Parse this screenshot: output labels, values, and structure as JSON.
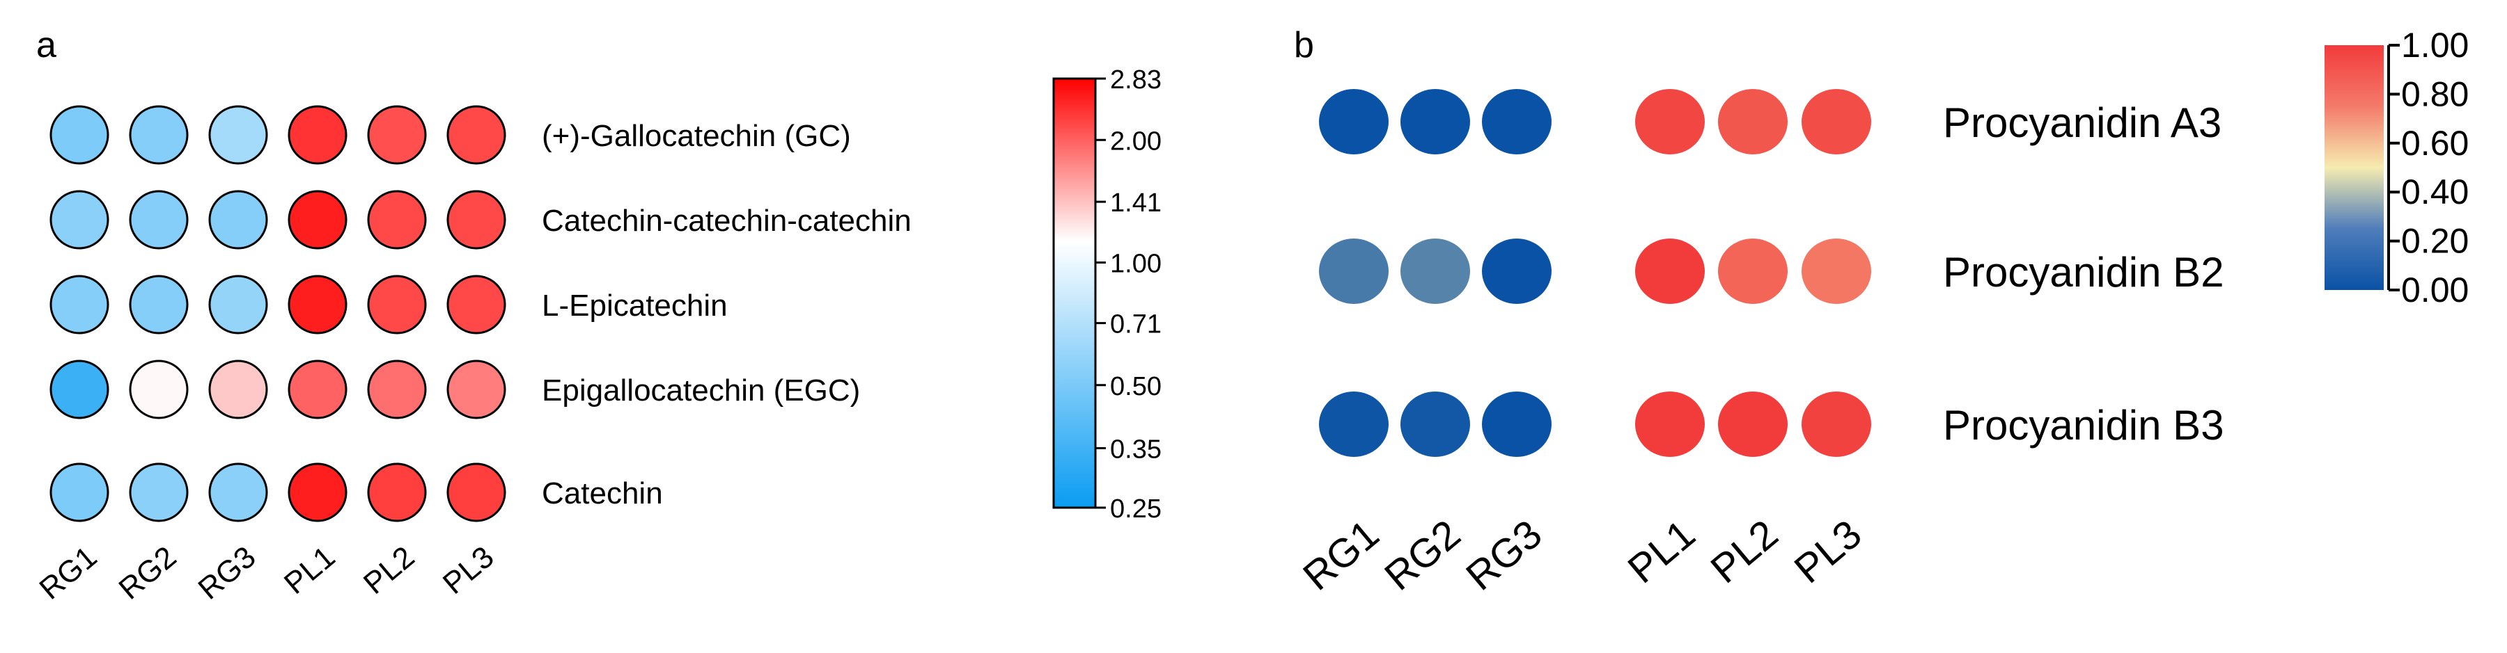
{
  "panels": {
    "a": {
      "letter": "a"
    },
    "b": {
      "letter": "b"
    }
  },
  "chart_data": [
    {
      "panel": "a",
      "type": "heatmap",
      "marker": "circle",
      "x_categories": [
        "RG1",
        "RG2",
        "RG3",
        "PL1",
        "PL2",
        "PL3"
      ],
      "y_categories": [
        "(+)-Gallocatechin (GC)",
        "Catechin-catechin-catechin",
        "L-Epicatechin",
        "Epigallocatechin (EGC)",
        "Catechin"
      ],
      "values": [
        [
          0.48,
          0.5,
          0.6,
          2.3,
          2.05,
          2.1
        ],
        [
          0.52,
          0.5,
          0.5,
          2.5,
          2.1,
          2.1
        ],
        [
          0.5,
          0.5,
          0.55,
          2.5,
          2.1,
          2.1
        ],
        [
          0.33,
          1.03,
          1.25,
          1.9,
          1.8,
          1.7
        ],
        [
          0.48,
          0.52,
          0.52,
          2.5,
          2.2,
          2.2
        ]
      ],
      "colorbar": {
        "ticks": [
          "2.83",
          "2.00",
          "1.41",
          "1.00",
          "0.71",
          "0.50",
          "0.35",
          "0.25"
        ],
        "tick_values": [
          2.83,
          2.0,
          1.41,
          1.0,
          0.71,
          0.5,
          0.35,
          0.25
        ],
        "scale": "log",
        "range": [
          0.25,
          2.83
        ],
        "colors": {
          "low": "#0a9cf2",
          "mid": "#ffffff",
          "high": "#ff0000"
        }
      }
    },
    {
      "panel": "b",
      "type": "heatmap",
      "marker": "ellipse",
      "x_categories": [
        "RG1",
        "RG2",
        "RG3",
        "PL1",
        "PL2",
        "PL3"
      ],
      "y_categories": [
        "Procyanidin A3",
        "Procyanidin B2",
        "Procyanidin B3"
      ],
      "values": [
        [
          0.0,
          0.0,
          0.0,
          0.97,
          0.92,
          0.95
        ],
        [
          0.13,
          0.16,
          0.0,
          1.0,
          0.88,
          0.83
        ],
        [
          0.01,
          0.02,
          0.0,
          1.0,
          1.0,
          0.98
        ]
      ],
      "colorbar": {
        "ticks": [
          "1.00",
          "0.80",
          "0.60",
          "0.40",
          "0.20",
          "0.00"
        ],
        "tick_values": [
          1.0,
          0.8,
          0.6,
          0.4,
          0.2,
          0.0
        ],
        "scale": "linear",
        "range": [
          0.0,
          1.0
        ],
        "colors": {
          "low": "#0a52a6",
          "mid": "#f5ecb0",
          "high": "#f23b3b"
        }
      }
    }
  ]
}
